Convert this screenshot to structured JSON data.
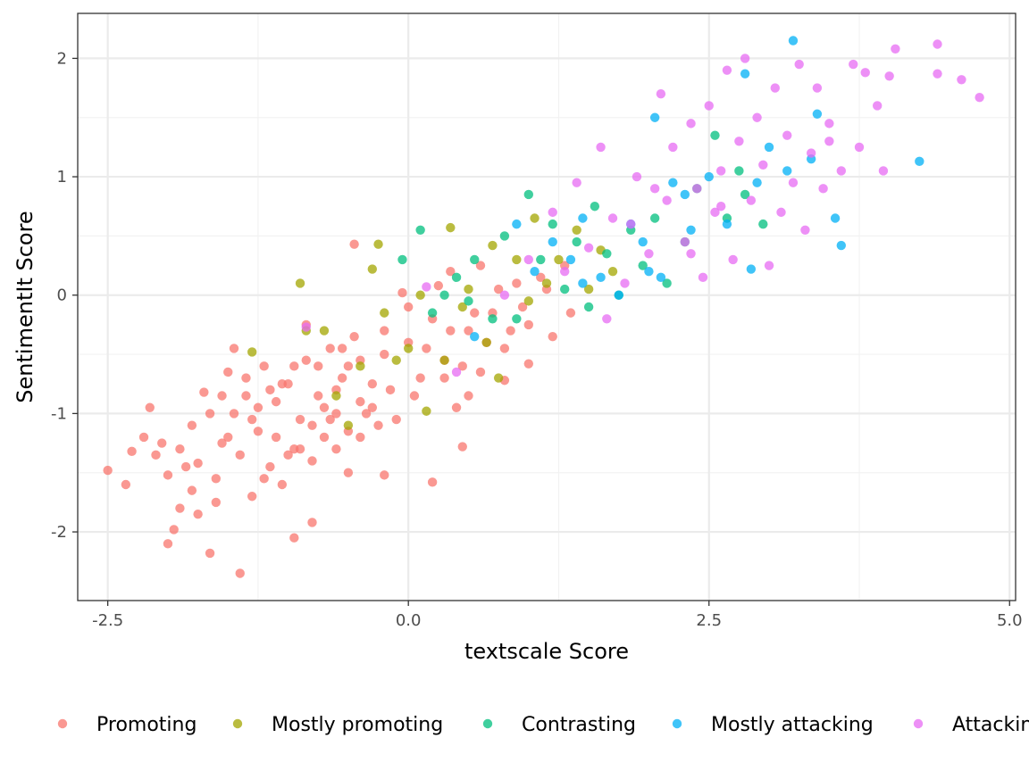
{
  "chart_data": {
    "type": "scatter",
    "title": "",
    "xlabel": "textscale Score",
    "ylabel": "SentimentIt Score",
    "xlim": [
      -2.75,
      5.05
    ],
    "ylim": [
      -2.58,
      2.38
    ],
    "xticks": [
      -2.5,
      0.0,
      2.5,
      5.0
    ],
    "xtick_labels": [
      "-2.5",
      "0.0",
      "2.5",
      "5.0"
    ],
    "yticks": [
      -2,
      -1,
      0,
      1,
      2
    ],
    "ytick_labels": [
      "-2",
      "-1",
      "0",
      "1",
      "2"
    ],
    "grid": true,
    "legend_position": "bottom",
    "series": [
      {
        "name": "Promoting",
        "color": "#F8766D",
        "points": [
          [
            -2.5,
            -1.48
          ],
          [
            -2.35,
            -1.6
          ],
          [
            -2.3,
            -1.32
          ],
          [
            -2.2,
            -1.2
          ],
          [
            -2.15,
            -0.95
          ],
          [
            -2.1,
            -1.35
          ],
          [
            -2.05,
            -1.25
          ],
          [
            -2.0,
            -2.1
          ],
          [
            -1.95,
            -1.98
          ],
          [
            -1.9,
            -1.8
          ],
          [
            -1.85,
            -1.45
          ],
          [
            -1.8,
            -1.65
          ],
          [
            -1.75,
            -1.42
          ],
          [
            -1.7,
            -0.82
          ],
          [
            -1.65,
            -2.18
          ],
          [
            -1.6,
            -1.55
          ],
          [
            -1.55,
            -1.25
          ],
          [
            -1.5,
            -0.65
          ],
          [
            -1.45,
            -1.0
          ],
          [
            -1.4,
            -1.35
          ],
          [
            -1.35,
            -0.85
          ],
          [
            -1.3,
            -1.7
          ],
          [
            -1.25,
            -1.15
          ],
          [
            -1.2,
            -0.6
          ],
          [
            -1.15,
            -1.45
          ],
          [
            -1.1,
            -0.9
          ],
          [
            -1.05,
            -1.6
          ],
          [
            -1.0,
            -0.75
          ],
          [
            -0.95,
            -1.3
          ],
          [
            -0.9,
            -1.05
          ],
          [
            -0.85,
            -0.55
          ],
          [
            -0.8,
            -1.4
          ],
          [
            -0.75,
            -0.85
          ],
          [
            -0.7,
            -1.2
          ],
          [
            -0.65,
            -0.45
          ],
          [
            -0.6,
            -1.0
          ],
          [
            -0.55,
            -0.7
          ],
          [
            -0.5,
            -1.5
          ],
          [
            -0.45,
            -0.35
          ],
          [
            -0.4,
            -0.9
          ],
          [
            -1.4,
            -2.35
          ],
          [
            -0.95,
            -2.05
          ],
          [
            -0.8,
            -1.92
          ],
          [
            -1.75,
            -1.85
          ],
          [
            -1.6,
            -1.75
          ],
          [
            -2.0,
            -1.52
          ],
          [
            -1.3,
            -1.05
          ],
          [
            -1.1,
            -1.2
          ],
          [
            -0.9,
            -1.3
          ],
          [
            -0.7,
            -0.95
          ],
          [
            -0.6,
            -1.3
          ],
          [
            -0.5,
            -0.6
          ],
          [
            -0.4,
            -1.2
          ],
          [
            -0.3,
            -0.75
          ],
          [
            -0.2,
            -0.5
          ],
          [
            -0.1,
            -1.05
          ],
          [
            0.0,
            -0.4
          ],
          [
            0.1,
            -0.7
          ],
          [
            0.2,
            -0.2
          ],
          [
            0.3,
            -0.55
          ],
          [
            0.4,
            -0.95
          ],
          [
            0.5,
            -0.3
          ],
          [
            0.6,
            -0.65
          ],
          [
            0.7,
            -0.15
          ],
          [
            0.8,
            -0.45
          ],
          [
            0.9,
            0.1
          ],
          [
            1.0,
            -0.25
          ],
          [
            1.1,
            0.15
          ],
          [
            1.2,
            -0.35
          ],
          [
            1.3,
            0.25
          ],
          [
            -0.45,
            0.43
          ],
          [
            0.45,
            -1.28
          ],
          [
            0.2,
            -1.58
          ],
          [
            -0.2,
            -1.52
          ],
          [
            0.5,
            -0.85
          ],
          [
            0.6,
            0.25
          ],
          [
            0.8,
            -0.72
          ],
          [
            1.0,
            -0.58
          ],
          [
            -0.05,
            0.02
          ],
          [
            0.25,
            0.08
          ],
          [
            0.35,
            -0.3
          ],
          [
            -0.3,
            -0.95
          ],
          [
            -0.55,
            -0.45
          ],
          [
            -0.85,
            -0.25
          ],
          [
            -1.05,
            -0.75
          ],
          [
            -1.25,
            -0.95
          ],
          [
            -1.45,
            -0.45
          ],
          [
            -1.55,
            -0.85
          ],
          [
            -1.8,
            -1.1
          ],
          [
            -1.9,
            -1.3
          ],
          [
            -1.2,
            -1.55
          ],
          [
            -1.0,
            -1.35
          ],
          [
            -0.8,
            -1.1
          ],
          [
            -0.6,
            -0.8
          ],
          [
            -0.4,
            -0.55
          ],
          [
            -0.2,
            -0.3
          ],
          [
            0.0,
            -0.1
          ],
          [
            0.15,
            -0.45
          ],
          [
            0.35,
            0.2
          ],
          [
            0.55,
            -0.15
          ],
          [
            0.75,
            0.05
          ],
          [
            0.95,
            -0.1
          ],
          [
            1.15,
            0.05
          ],
          [
            1.35,
            -0.15
          ],
          [
            -1.65,
            -1.0
          ],
          [
            -1.5,
            -1.2
          ],
          [
            -1.35,
            -0.7
          ],
          [
            -1.15,
            -0.8
          ],
          [
            -0.95,
            -0.6
          ],
          [
            -0.75,
            -0.6
          ],
          [
            -0.65,
            -1.05
          ],
          [
            -0.5,
            -1.15
          ],
          [
            -0.35,
            -1.0
          ],
          [
            -0.25,
            -1.1
          ],
          [
            -0.15,
            -0.8
          ],
          [
            0.05,
            -0.85
          ],
          [
            0.3,
            -0.7
          ],
          [
            0.45,
            -0.6
          ],
          [
            0.65,
            -0.4
          ],
          [
            0.85,
            -0.3
          ]
        ]
      },
      {
        "name": "Mostly promoting",
        "color": "#A3A500",
        "points": [
          [
            -1.3,
            -0.48
          ],
          [
            -0.9,
            0.1
          ],
          [
            -0.85,
            -0.3
          ],
          [
            -0.7,
            -0.3
          ],
          [
            -0.6,
            -0.85
          ],
          [
            -0.5,
            -1.1
          ],
          [
            -0.4,
            -0.6
          ],
          [
            -0.3,
            0.22
          ],
          [
            -0.25,
            0.43
          ],
          [
            -0.2,
            -0.15
          ],
          [
            -0.1,
            -0.55
          ],
          [
            0.0,
            -0.45
          ],
          [
            0.1,
            0.0
          ],
          [
            0.15,
            -0.98
          ],
          [
            0.3,
            -0.55
          ],
          [
            0.35,
            0.57
          ],
          [
            0.45,
            -0.1
          ],
          [
            0.5,
            0.05
          ],
          [
            0.65,
            -0.4
          ],
          [
            0.7,
            0.42
          ],
          [
            0.75,
            -0.7
          ],
          [
            0.9,
            0.3
          ],
          [
            1.0,
            -0.05
          ],
          [
            1.05,
            0.65
          ],
          [
            1.15,
            0.1
          ],
          [
            1.25,
            0.3
          ],
          [
            1.4,
            0.55
          ],
          [
            1.5,
            0.05
          ],
          [
            1.6,
            0.38
          ],
          [
            1.7,
            0.2
          ]
        ]
      },
      {
        "name": "Contrasting",
        "color": "#00BF7D",
        "points": [
          [
            -0.05,
            0.3
          ],
          [
            0.1,
            0.55
          ],
          [
            0.2,
            -0.15
          ],
          [
            0.3,
            0.0
          ],
          [
            0.4,
            0.15
          ],
          [
            0.5,
            -0.05
          ],
          [
            0.55,
            0.3
          ],
          [
            0.7,
            -0.2
          ],
          [
            0.8,
            0.5
          ],
          [
            0.9,
            -0.2
          ],
          [
            1.0,
            0.85
          ],
          [
            1.1,
            0.3
          ],
          [
            1.2,
            0.6
          ],
          [
            1.3,
            0.05
          ],
          [
            1.4,
            0.45
          ],
          [
            1.5,
            -0.1
          ],
          [
            1.55,
            0.75
          ],
          [
            1.65,
            0.35
          ],
          [
            1.75,
            0.0
          ],
          [
            1.85,
            0.55
          ],
          [
            1.95,
            0.25
          ],
          [
            2.05,
            0.65
          ],
          [
            2.15,
            0.1
          ],
          [
            2.3,
            0.45
          ],
          [
            2.4,
            0.9
          ],
          [
            2.55,
            1.35
          ],
          [
            2.65,
            0.65
          ],
          [
            2.75,
            1.05
          ],
          [
            2.8,
            0.85
          ],
          [
            2.95,
            0.6
          ]
        ]
      },
      {
        "name": "Mostly attacking",
        "color": "#00B0F6",
        "points": [
          [
            0.55,
            -0.35
          ],
          [
            0.9,
            0.6
          ],
          [
            1.05,
            0.2
          ],
          [
            1.2,
            0.45
          ],
          [
            1.35,
            0.3
          ],
          [
            1.45,
            0.65
          ],
          [
            1.6,
            0.15
          ],
          [
            1.75,
            0.0
          ],
          [
            1.85,
            0.6
          ],
          [
            2.0,
            0.2
          ],
          [
            2.05,
            1.5
          ],
          [
            2.2,
            0.95
          ],
          [
            2.35,
            0.55
          ],
          [
            2.5,
            1.0
          ],
          [
            2.65,
            0.6
          ],
          [
            2.8,
            1.87
          ],
          [
            2.85,
            0.22
          ],
          [
            3.15,
            1.05
          ],
          [
            3.2,
            2.15
          ],
          [
            3.35,
            1.15
          ],
          [
            3.4,
            1.53
          ],
          [
            3.55,
            0.65
          ],
          [
            3.6,
            0.42
          ],
          [
            4.25,
            1.13
          ],
          [
            2.1,
            0.15
          ],
          [
            1.95,
            0.45
          ],
          [
            1.45,
            0.1
          ],
          [
            2.3,
            0.85
          ],
          [
            2.9,
            0.95
          ],
          [
            3.0,
            1.25
          ]
        ]
      },
      {
        "name": "Attacking",
        "color": "#E76BF3",
        "points": [
          [
            -0.85,
            -0.27
          ],
          [
            0.15,
            0.07
          ],
          [
            0.4,
            -0.65
          ],
          [
            0.8,
            0.0
          ],
          [
            1.0,
            0.3
          ],
          [
            1.2,
            0.7
          ],
          [
            1.3,
            0.2
          ],
          [
            1.4,
            0.95
          ],
          [
            1.5,
            0.4
          ],
          [
            1.6,
            1.25
          ],
          [
            1.7,
            0.65
          ],
          [
            1.8,
            0.1
          ],
          [
            1.9,
            1.0
          ],
          [
            2.0,
            0.35
          ],
          [
            2.1,
            1.7
          ],
          [
            2.15,
            0.8
          ],
          [
            2.2,
            1.25
          ],
          [
            2.3,
            0.45
          ],
          [
            2.35,
            1.45
          ],
          [
            2.4,
            0.9
          ],
          [
            2.45,
            0.15
          ],
          [
            2.5,
            1.6
          ],
          [
            2.55,
            0.7
          ],
          [
            2.6,
            1.05
          ],
          [
            2.65,
            1.9
          ],
          [
            2.7,
            0.3
          ],
          [
            2.75,
            1.3
          ],
          [
            2.8,
            2.0
          ],
          [
            2.85,
            0.8
          ],
          [
            2.9,
            1.5
          ],
          [
            2.95,
            1.1
          ],
          [
            3.0,
            0.25
          ],
          [
            3.05,
            1.75
          ],
          [
            3.1,
            0.7
          ],
          [
            3.15,
            1.35
          ],
          [
            3.2,
            0.95
          ],
          [
            3.25,
            1.95
          ],
          [
            3.3,
            0.55
          ],
          [
            3.35,
            1.2
          ],
          [
            3.4,
            1.75
          ],
          [
            3.45,
            0.9
          ],
          [
            3.5,
            1.45
          ],
          [
            3.6,
            1.05
          ],
          [
            3.7,
            1.95
          ],
          [
            3.75,
            1.25
          ],
          [
            3.9,
            1.6
          ],
          [
            3.95,
            1.05
          ],
          [
            4.0,
            1.85
          ],
          [
            4.05,
            2.08
          ],
          [
            4.4,
            2.12
          ],
          [
            4.6,
            1.82
          ],
          [
            4.75,
            1.67
          ],
          [
            4.4,
            1.87
          ],
          [
            3.8,
            1.88
          ],
          [
            3.5,
            1.3
          ],
          [
            2.35,
            0.35
          ],
          [
            1.85,
            0.6
          ],
          [
            1.65,
            -0.2
          ],
          [
            2.05,
            0.9
          ],
          [
            2.6,
            0.75
          ]
        ]
      }
    ]
  }
}
